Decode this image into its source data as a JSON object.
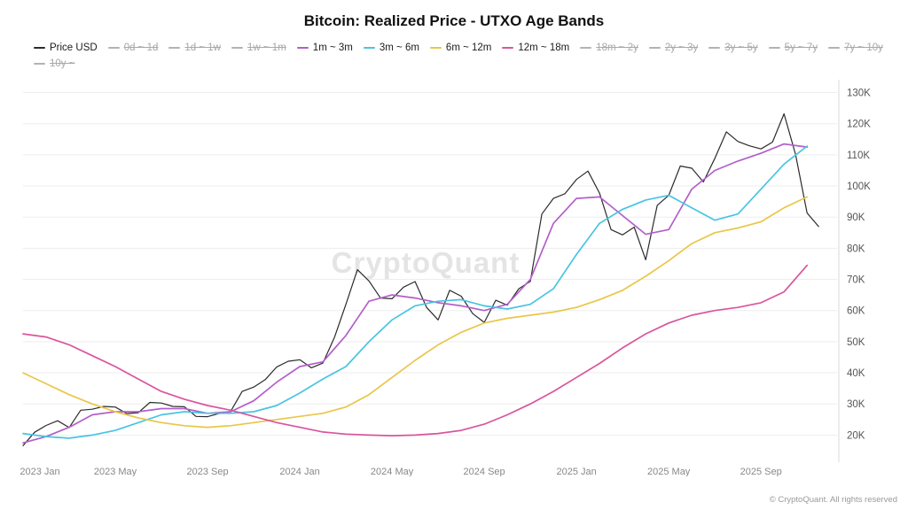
{
  "title": "Bitcoin: Realized Price - UTXO Age Bands",
  "watermark": "CryptoQuant",
  "footer": "© CryptoQuant. All rights reserved",
  "colors": {
    "price": "#2b2b2b",
    "band_1m_3m": "#b35fc9",
    "band_3m_6m": "#48c4e2",
    "band_6m_12m": "#e9c64a",
    "band_12m_18m": "#d9559c",
    "disabled": "#b3b3b3",
    "grid": "#ededed"
  },
  "legend": {
    "items": [
      {
        "label": "Price USD",
        "color": "#2b2b2b",
        "active": true
      },
      {
        "label": "0d ~ 1d",
        "color": "#b3b3b3",
        "active": false
      },
      {
        "label": "1d ~ 1w",
        "color": "#b3b3b3",
        "active": false
      },
      {
        "label": "1w ~ 1m",
        "color": "#b3b3b3",
        "active": false
      },
      {
        "label": "1m ~ 3m",
        "color": "#b35fc9",
        "active": true
      },
      {
        "label": "3m ~ 6m",
        "color": "#48c4e2",
        "active": true
      },
      {
        "label": "6m ~ 12m",
        "color": "#e9c64a",
        "active": true
      },
      {
        "label": "12m ~ 18m",
        "color": "#d9559c",
        "active": true
      },
      {
        "label": "18m ~ 2y",
        "color": "#b3b3b3",
        "active": false
      },
      {
        "label": "2y ~ 3y",
        "color": "#b3b3b3",
        "active": false
      },
      {
        "label": "3y ~ 5y",
        "color": "#b3b3b3",
        "active": false
      },
      {
        "label": "5y ~ 7y",
        "color": "#b3b3b3",
        "active": false
      },
      {
        "label": "7y ~ 10y",
        "color": "#b3b3b3",
        "active": false
      },
      {
        "label": "10y ~",
        "color": "#b3b3b3",
        "active": false
      }
    ]
  },
  "chart_data": {
    "type": "line",
    "title": "Bitcoin: Realized Price - UTXO Age Bands",
    "x_unit": "months since 2023-01",
    "xlim": [
      0,
      35.3
    ],
    "ylim": [
      13,
      133
    ],
    "y_unit": "USD (thousands)",
    "y_ticks": [
      20,
      30,
      40,
      50,
      60,
      70,
      80,
      90,
      100,
      110,
      120,
      130
    ],
    "x_ticks": [
      {
        "x": 0,
        "label": "2023 Jan"
      },
      {
        "x": 4,
        "label": "2023 May"
      },
      {
        "x": 8,
        "label": "2023 Sep"
      },
      {
        "x": 12,
        "label": "2024 Jan"
      },
      {
        "x": 16,
        "label": "2024 May"
      },
      {
        "x": 20,
        "label": "2024 Sep"
      },
      {
        "x": 24,
        "label": "2025 Jan"
      },
      {
        "x": 28,
        "label": "2025 May"
      },
      {
        "x": 32,
        "label": "2025 Sep"
      }
    ],
    "grid": "horizontal",
    "legend_position": "top-left",
    "series": [
      {
        "name": "Price USD",
        "color": "#2b2b2b",
        "width": 1.2,
        "x_start": 0,
        "x_step": 0.5,
        "values": [
          16.6,
          20.9,
          23.1,
          24.6,
          22.4,
          28.0,
          28.3,
          29.2,
          29.0,
          26.9,
          27.2,
          30.5,
          30.3,
          29.2,
          29.1,
          26.0,
          25.9,
          26.9,
          27.6,
          34.0,
          35.4,
          37.8,
          41.9,
          43.7,
          44.2,
          41.6,
          43.1,
          51.3,
          62.0,
          73.1,
          69.5,
          64.0,
          63.8,
          67.5,
          69.3,
          61.0,
          57.0,
          66.5,
          64.6,
          59.0,
          56.2,
          63.3,
          61.7,
          67.0,
          69.4,
          91.0,
          96.0,
          97.5,
          102.1,
          104.8,
          97.7,
          86.0,
          84.3,
          86.8,
          76.3,
          93.8,
          97.0,
          106.4,
          105.7,
          101.3,
          108.9,
          117.4,
          114.3,
          112.9,
          111.9,
          114.1,
          123.2,
          110.1,
          91.3,
          87.0
        ]
      },
      {
        "name": "1m ~ 3m",
        "color": "#b35fc9",
        "width": 1.7,
        "x_start": 0,
        "x_step": 1,
        "values": [
          17.5,
          19.5,
          22.5,
          26.5,
          27.5,
          27.5,
          28.5,
          28.5,
          27.0,
          27.5,
          31.0,
          37.0,
          42.0,
          43.5,
          52.0,
          63.0,
          65.0,
          64.0,
          62.5,
          61.5,
          60.0,
          62.0,
          70.0,
          88.0,
          96.0,
          96.5,
          90.5,
          84.5,
          86.0,
          99.0,
          105.0,
          108.0,
          110.5,
          113.5,
          112.5
        ]
      },
      {
        "name": "3m ~ 6m",
        "color": "#48c4e2",
        "width": 1.7,
        "x_start": 0,
        "x_step": 1,
        "values": [
          20.5,
          19.5,
          19.0,
          20.0,
          21.5,
          24.0,
          26.5,
          27.5,
          27.0,
          27.0,
          27.5,
          29.5,
          33.5,
          38.0,
          42.0,
          50.0,
          57.0,
          61.5,
          63.0,
          63.5,
          61.5,
          60.5,
          62.0,
          67.0,
          78.0,
          88.0,
          92.5,
          95.5,
          97.0,
          93.0,
          89.0,
          91.0,
          99.0,
          107.0,
          112.8
        ]
      },
      {
        "name": "6m ~ 12m",
        "color": "#e9c64a",
        "width": 1.7,
        "x_start": 0,
        "x_step": 1,
        "values": [
          40.0,
          36.5,
          33.0,
          30.0,
          27.5,
          25.5,
          24.0,
          23.0,
          22.5,
          23.0,
          24.0,
          25.0,
          26.0,
          27.0,
          29.0,
          33.0,
          38.5,
          44.0,
          49.0,
          53.0,
          56.0,
          57.5,
          58.5,
          59.5,
          61.0,
          63.5,
          66.5,
          71.0,
          76.0,
          81.5,
          85.0,
          86.5,
          88.5,
          93.0,
          96.5
        ]
      },
      {
        "name": "12m ~ 18m",
        "color": "#d9559c",
        "width": 1.7,
        "x_start": 0,
        "x_step": 1,
        "values": [
          52.5,
          51.5,
          49.0,
          45.5,
          42.0,
          38.0,
          34.0,
          31.5,
          29.5,
          28.0,
          26.0,
          24.0,
          22.5,
          21.0,
          20.3,
          20.0,
          19.8,
          20.0,
          20.5,
          21.5,
          23.5,
          26.5,
          30.0,
          34.0,
          38.5,
          43.0,
          48.0,
          52.5,
          56.0,
          58.5,
          60.0,
          61.0,
          62.5,
          66.0,
          74.5
        ]
      }
    ]
  }
}
